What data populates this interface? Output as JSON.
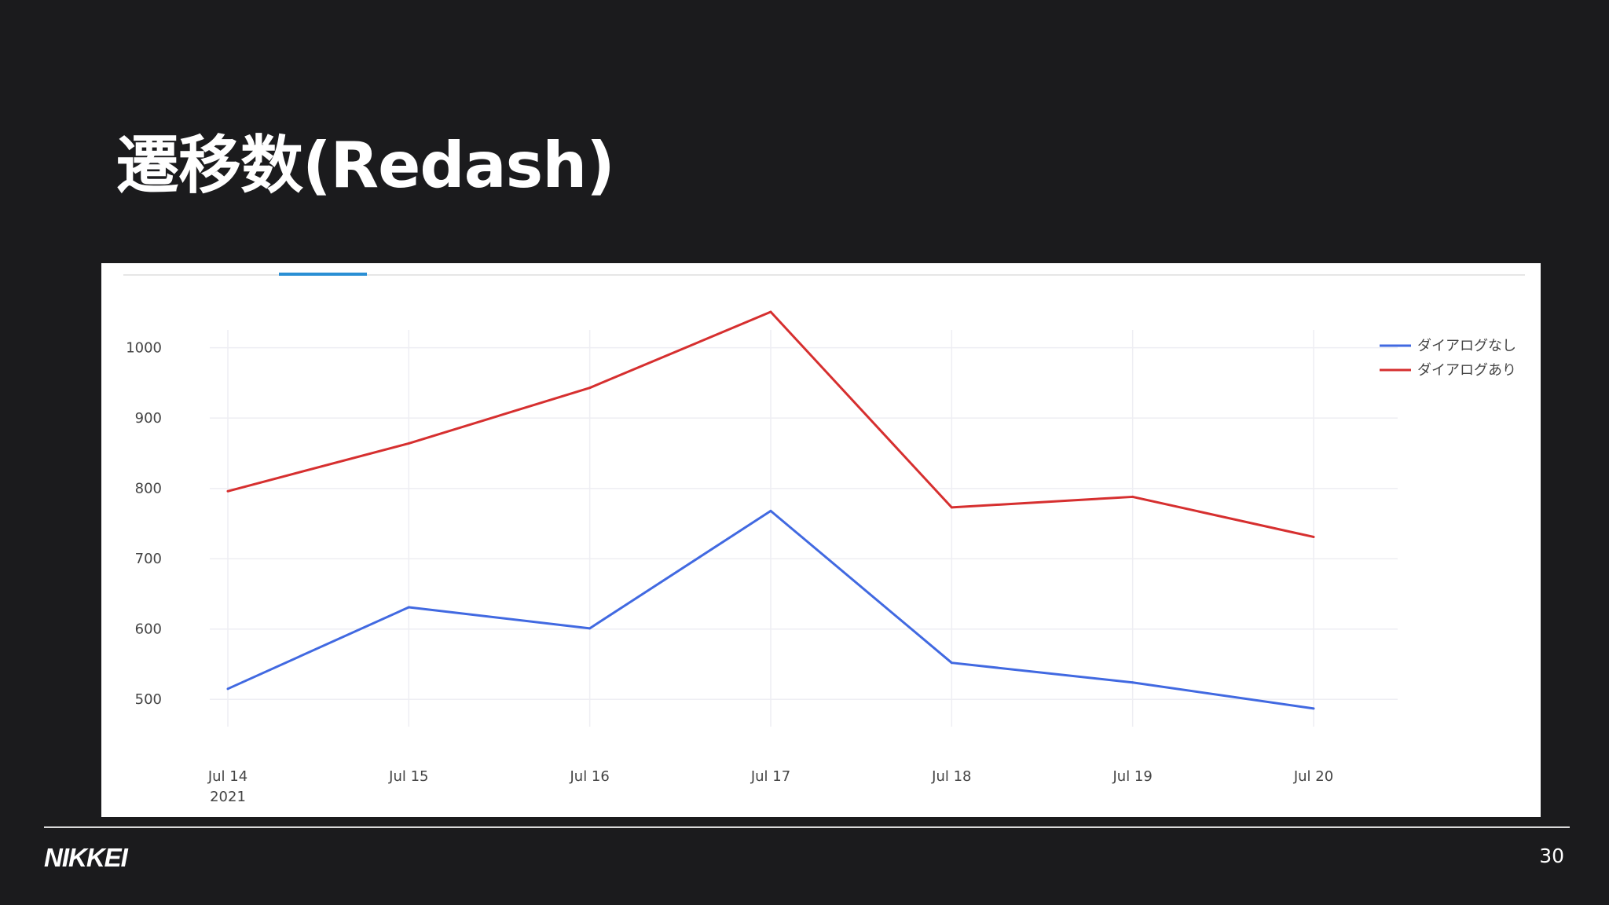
{
  "slide": {
    "title": "遷移数(Redash)",
    "logo": "NIKKEI",
    "page_number": "30"
  },
  "chart_data": {
    "type": "line",
    "title": "",
    "xlabel": "",
    "ylabel": "",
    "categories": [
      "2021-07-14",
      "2021-07-15",
      "2021-07-16",
      "2021-07-17",
      "2021-07-18",
      "2021-07-19",
      "2021-07-20"
    ],
    "x_tick_labels": [
      "Jul 14",
      "Jul 15",
      "Jul 16",
      "Jul 17",
      "Jul 18",
      "Jul 19",
      "Jul 20"
    ],
    "x_tick_sublabel": "2021",
    "y_ticks": [
      500,
      600,
      700,
      800,
      900,
      1000
    ],
    "ylim": [
      450,
      1070
    ],
    "grid": true,
    "legend_position": "top-right",
    "series": [
      {
        "name": "ダイアログなし",
        "color": "#4169e1",
        "values": [
          515,
          631,
          601,
          768,
          552,
          524,
          487
        ]
      },
      {
        "name": "ダイアログあり",
        "color": "#d62f2f",
        "values": [
          796,
          864,
          943,
          1051,
          773,
          788,
          731
        ]
      }
    ]
  }
}
